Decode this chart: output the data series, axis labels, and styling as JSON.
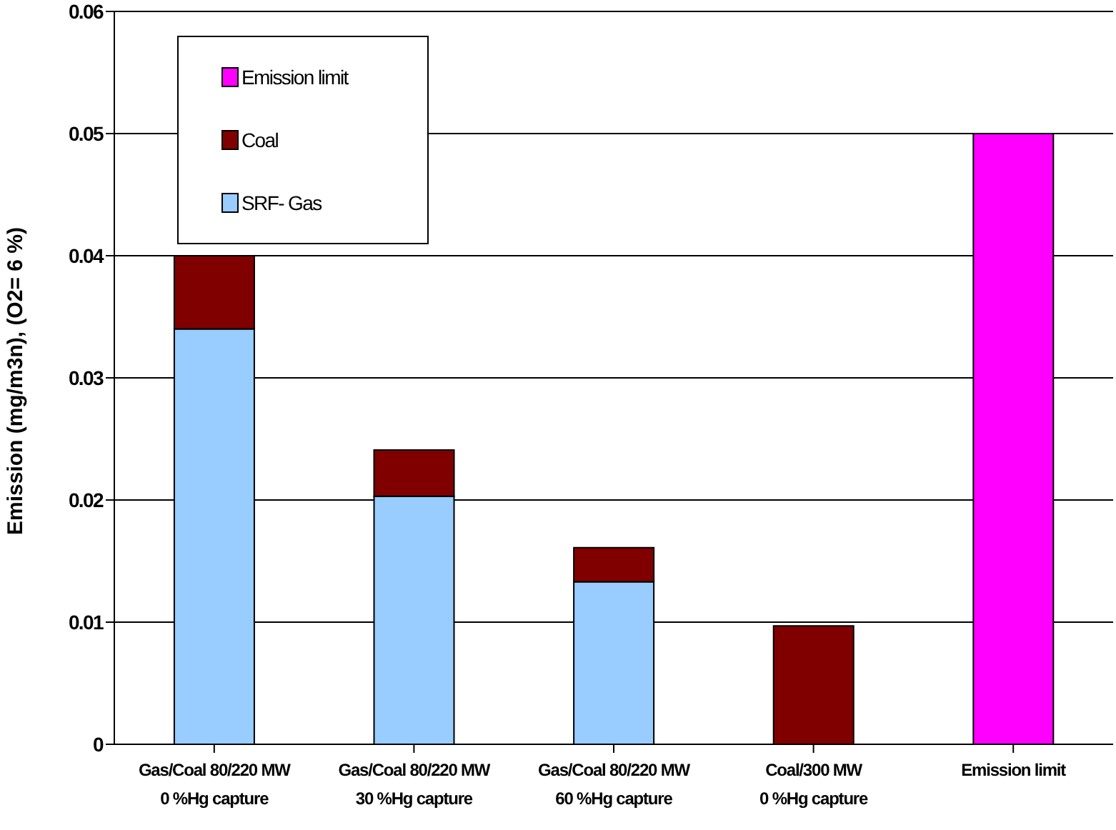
{
  "chart_data": {
    "type": "bar",
    "stacked": true,
    "ylabel": "Emission (mg/m3n), (O2= 6 %)",
    "categories": [
      "Gas/Coal 80/220 MW\n0 %Hg capture",
      "Gas/Coal 80/220 MW\n30 %Hg capture",
      "Gas/Coal 80/220 MW\n60 %Hg capture",
      "Coal/300 MW\n0 %Hg capture",
      "Emission limit"
    ],
    "series": [
      {
        "name": "SRF- Gas",
        "color": "#99ccff",
        "values": [
          0.034,
          0.0203,
          0.0133,
          null,
          null
        ]
      },
      {
        "name": "Coal",
        "color": "#800000",
        "values": [
          0.006,
          0.0038,
          0.0028,
          0.0097,
          null
        ]
      },
      {
        "name": "Emission limit",
        "color": "#ff00ff",
        "values": [
          null,
          null,
          null,
          null,
          0.05
        ]
      }
    ],
    "ylim": [
      0,
      0.06
    ],
    "yticks": [
      0,
      0.01,
      0.02,
      0.03,
      0.04,
      0.05,
      0.06
    ],
    "grid": "y",
    "legend": "top left"
  }
}
